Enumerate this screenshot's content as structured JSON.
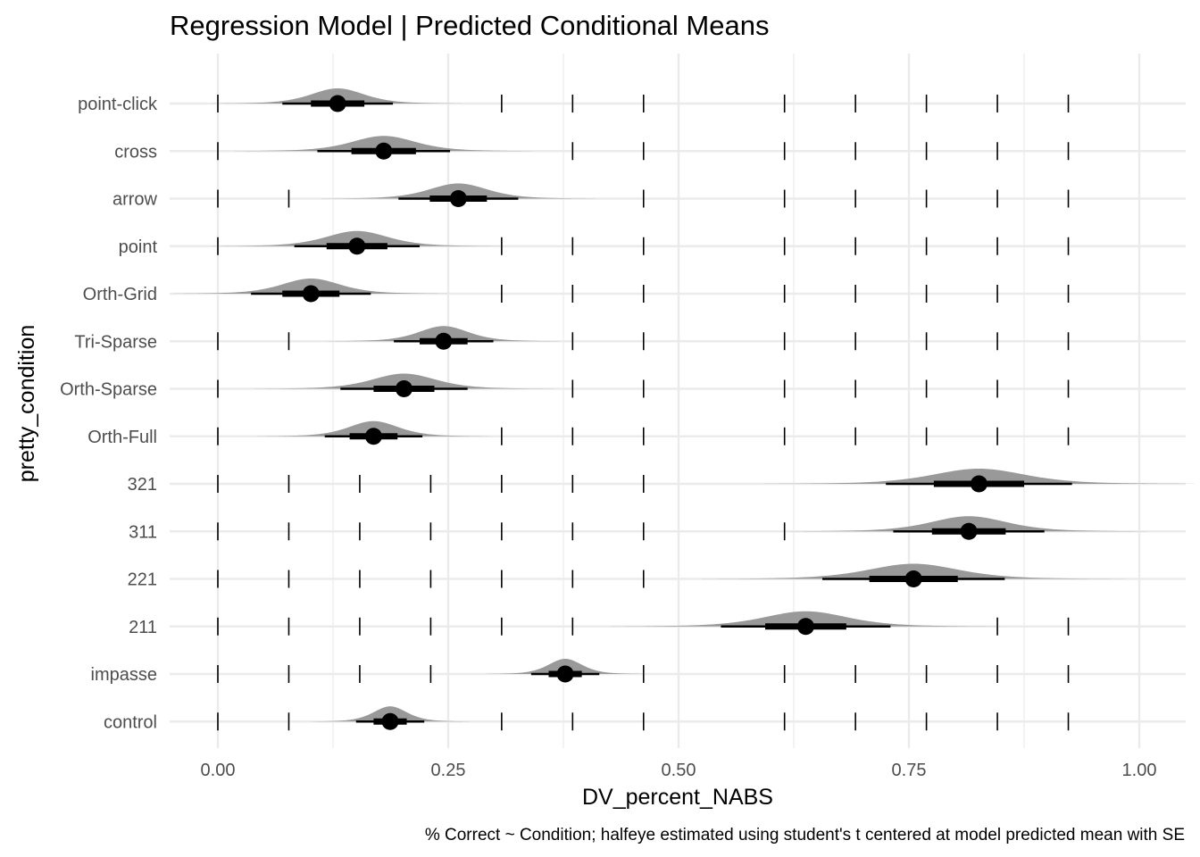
{
  "chart_data": {
    "type": "halfeye",
    "title": "Regression Model | Predicted Conditional Means",
    "xlabel": "DV_percent_NABS",
    "ylabel": "pretty_condition",
    "caption": "% Correct ~ Condition; halfeye estimated using student's t centered at model predicted mean with SE",
    "xlim": [
      -0.03,
      1.03
    ],
    "x_ticks": [
      0.0,
      0.25,
      0.5,
      0.75,
      1.0
    ],
    "x_tick_labels": [
      "0.00",
      "0.25",
      "0.50",
      "0.75",
      "1.00"
    ],
    "grid": true,
    "legend": "none",
    "rug_ticks": [
      0.0,
      0.077,
      0.154,
      0.231,
      0.308,
      0.385,
      0.462,
      0.615,
      0.692,
      0.769,
      0.846,
      0.923
    ],
    "slab_color": "#999999",
    "point_color": "#000000",
    "categories": [
      {
        "label": "point-click",
        "mean": 0.13,
        "inner": [
          0.101,
          0.159
        ],
        "outer": [
          0.07,
          0.19
        ],
        "spread": 0.03
      },
      {
        "label": "cross",
        "mean": 0.18,
        "inner": [
          0.145,
          0.215
        ],
        "outer": [
          0.108,
          0.252
        ],
        "spread": 0.036
      },
      {
        "label": "arrow",
        "mean": 0.261,
        "inner": [
          0.23,
          0.292
        ],
        "outer": [
          0.196,
          0.326
        ],
        "spread": 0.033
      },
      {
        "label": "point",
        "mean": 0.151,
        "inner": [
          0.118,
          0.184
        ],
        "outer": [
          0.083,
          0.219
        ],
        "spread": 0.035
      },
      {
        "label": "Orth-Grid",
        "mean": 0.101,
        "inner": [
          0.07,
          0.132
        ],
        "outer": [
          0.036,
          0.166
        ],
        "spread": 0.033
      },
      {
        "label": "Tri-Sparse",
        "mean": 0.245,
        "inner": [
          0.219,
          0.271
        ],
        "outer": [
          0.191,
          0.299
        ],
        "spread": 0.028
      },
      {
        "label": "Orth-Sparse",
        "mean": 0.202,
        "inner": [
          0.169,
          0.235
        ],
        "outer": [
          0.133,
          0.271
        ],
        "spread": 0.036
      },
      {
        "label": "Orth-Full",
        "mean": 0.169,
        "inner": [
          0.143,
          0.195
        ],
        "outer": [
          0.116,
          0.222
        ],
        "spread": 0.028
      },
      {
        "label": "321",
        "mean": 0.826,
        "inner": [
          0.777,
          0.875
        ],
        "outer": [
          0.725,
          0.927
        ],
        "spread": 0.052
      },
      {
        "label": "311",
        "mean": 0.815,
        "inner": [
          0.775,
          0.855
        ],
        "outer": [
          0.733,
          0.897
        ],
        "spread": 0.043
      },
      {
        "label": "221",
        "mean": 0.755,
        "inner": [
          0.707,
          0.803
        ],
        "outer": [
          0.656,
          0.854
        ],
        "spread": 0.051
      },
      {
        "label": "211",
        "mean": 0.638,
        "inner": [
          0.594,
          0.682
        ],
        "outer": [
          0.546,
          0.73
        ],
        "spread": 0.047
      },
      {
        "label": "impasse",
        "mean": 0.377,
        "inner": [
          0.359,
          0.395
        ],
        "outer": [
          0.34,
          0.414
        ],
        "spread": 0.019
      },
      {
        "label": "control",
        "mean": 0.187,
        "inner": [
          0.169,
          0.205
        ],
        "outer": [
          0.15,
          0.224
        ],
        "spread": 0.019
      }
    ]
  }
}
